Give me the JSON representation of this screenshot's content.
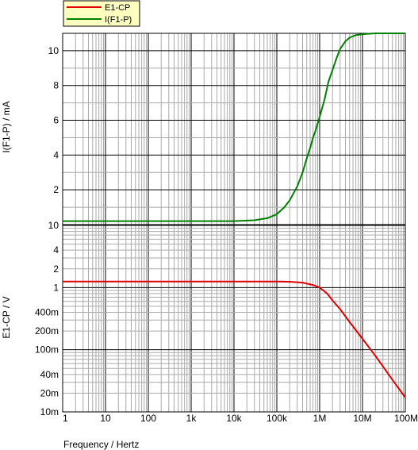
{
  "chart_data": [
    {
      "type": "line",
      "ylabel": "I(F1-P) / mA",
      "xscale": "log",
      "xlim": [
        1,
        100000000
      ],
      "ylim": [
        0,
        11
      ],
      "y_ticks": [
        2,
        4,
        6,
        8,
        10
      ],
      "series": [
        {
          "name": "I(F1-P)",
          "color": "#008000",
          "x": [
            1,
            1000,
            10000,
            30000,
            60000,
            100000,
            150000,
            200000,
            300000,
            400000,
            500000,
            600000,
            700000,
            800000,
            1000000,
            1300000,
            1600000,
            2000000,
            2500000,
            3000000,
            4000000,
            5000000,
            7000000,
            10000000,
            20000000,
            50000000,
            100000000
          ],
          "y": [
            0.2,
            0.2,
            0.2,
            0.25,
            0.37,
            0.6,
            1.0,
            1.4,
            2.2,
            3.0,
            3.8,
            4.4,
            5.0,
            5.4,
            6.2,
            7.2,
            8.2,
            8.9,
            9.6,
            10.1,
            10.55,
            10.75,
            10.9,
            10.95,
            11.0,
            11.0,
            11.0
          ]
        }
      ]
    },
    {
      "type": "line",
      "ylabel": "E1-CP / V",
      "xlabel": "Frequency / Hertz",
      "xscale": "log",
      "yscale": "log",
      "xlim": [
        1,
        100000000
      ],
      "ylim": [
        0.01,
        10
      ],
      "y_ticks": [
        "10m",
        "20m",
        "40m",
        "100m",
        "200m",
        "400m",
        "1",
        "2",
        "4",
        "10"
      ],
      "x_ticks": [
        "1",
        "10",
        "100",
        "1k",
        "10k",
        "100k",
        "1M",
        "10M",
        "100M"
      ],
      "series": [
        {
          "name": "E1-CP",
          "color": "#e00000",
          "x": [
            1,
            100000,
            200000,
            400000,
            700000,
            1000000,
            1500000,
            2000000,
            3000000,
            5000000,
            10000000,
            20000000,
            50000000,
            100000000
          ],
          "y": [
            1.25,
            1.25,
            1.24,
            1.2,
            1.1,
            1.0,
            0.8,
            0.62,
            0.45,
            0.28,
            0.15,
            0.08,
            0.033,
            0.017
          ]
        }
      ]
    }
  ],
  "legend": [
    {
      "label": "E1-CP",
      "color": "#e00000"
    },
    {
      "label": "I(F1-P)",
      "color": "#008000"
    }
  ]
}
